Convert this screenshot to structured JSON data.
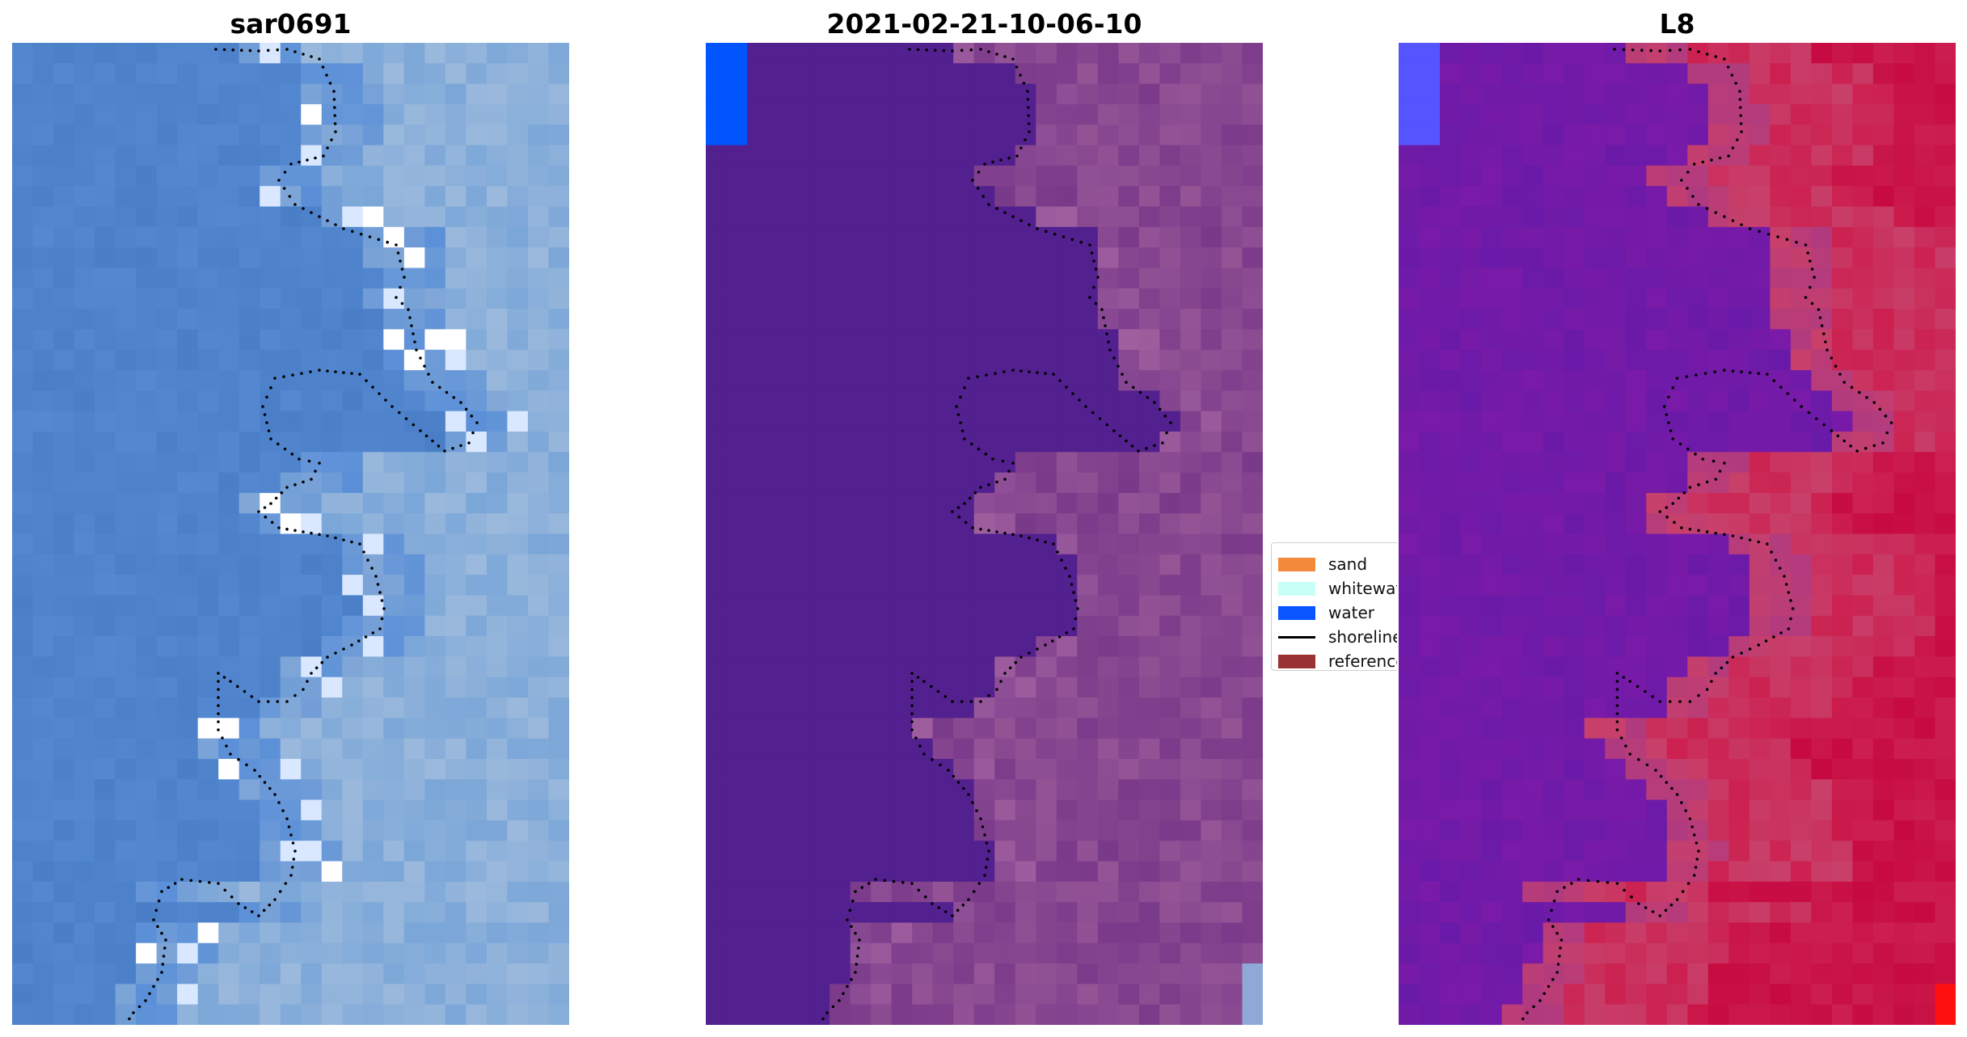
{
  "panels": [
    {
      "title": "sar0691",
      "style": "rgb",
      "palette": [
        "#4a7fc8",
        "#5a8fd8",
        "#7aa6d8",
        "#8fb0d6",
        "#9bb9dc",
        "#ffffff",
        "#d9e8ff"
      ]
    },
    {
      "title": "2021-02-21-10-06-10",
      "style": "classified",
      "palette": [
        "#52208f",
        "#7a3a8a",
        "#8a4a8e",
        "#9a5a98",
        "#b070a8",
        "#0055ff",
        "#8fa9d6"
      ]
    },
    {
      "title": "L8",
      "style": "index",
      "palette": [
        "#6a1aa8",
        "#7a1aa8",
        "#b03a80",
        "#c8406a",
        "#cc2050",
        "#c4003a",
        "#ff1010",
        "#5555ff"
      ]
    }
  ],
  "legend": {
    "items": [
      {
        "label": "sand",
        "color": "#f28a3c",
        "kind": "patch"
      },
      {
        "label": "whitewater",
        "color": "#c8fff6",
        "kind": "patch"
      },
      {
        "label": "water",
        "color": "#0a55ff",
        "kind": "patch"
      },
      {
        "label": "shoreline",
        "color": "#000000",
        "kind": "line"
      },
      {
        "label": "reference",
        "color": "#993333",
        "kind": "patch"
      }
    ]
  }
}
